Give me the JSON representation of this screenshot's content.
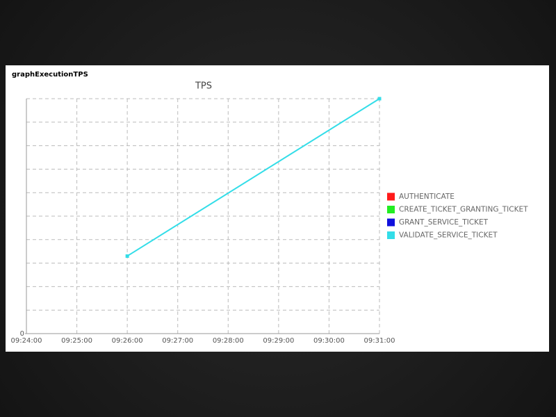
{
  "panel_title": "graphExecutionTPS",
  "chart_data": {
    "type": "line",
    "title": "TPS",
    "x": [
      "09:26:00",
      "09:31:00"
    ],
    "xlim": [
      "09:24:00",
      "09:31:00"
    ],
    "xticks": [
      "09:24:00",
      "09:25:00",
      "09:26:00",
      "09:27:00",
      "09:28:00",
      "09:29:00",
      "09:30:00",
      "09:31:00"
    ],
    "ylim": [
      0,
      10
    ],
    "yticks": [
      0
    ],
    "ygrid": [
      1,
      2,
      3,
      4,
      5,
      6,
      7,
      8,
      9,
      10
    ],
    "grid": true,
    "series": [
      {
        "name": "AUTHENTICATE",
        "color": "#ff1a1a",
        "values": [
          null,
          null
        ]
      },
      {
        "name": "CREATE_TICKET_GRANTING_TICKET",
        "color": "#22ee22",
        "values": [
          null,
          null
        ]
      },
      {
        "name": "GRANT_SERVICE_TICKET",
        "color": "#1010dd",
        "values": [
          null,
          null
        ]
      },
      {
        "name": "VALIDATE_SERVICE_TICKET",
        "color": "#33dde8",
        "values": [
          3.3,
          10
        ]
      }
    ]
  }
}
